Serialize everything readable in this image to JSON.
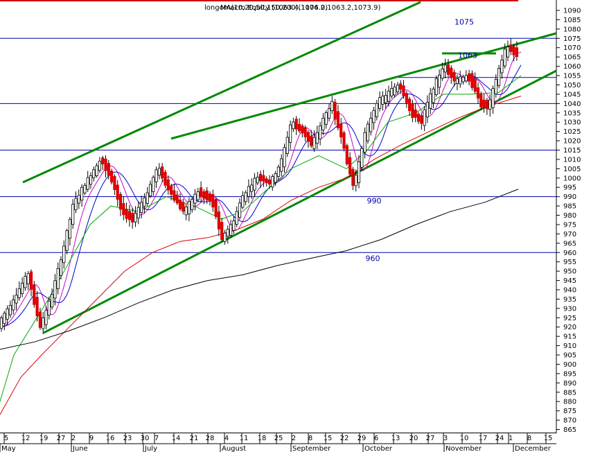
{
  "chart_data": {
    "type": "candlestick",
    "title": "longomacro  Equity (1063.4,1076.2,1063.2,1073.9)",
    "title_overlap": "MA(10,20,50,150,200)(1104.0)",
    "yaxis": {
      "min": 865,
      "max": 1090,
      "step": 5,
      "position": "right"
    },
    "x_ticks": [
      "5",
      "12",
      "19",
      "27",
      "2",
      "9",
      "16",
      "23",
      "30",
      "7",
      "14",
      "21",
      "28",
      "4",
      "11",
      "18",
      "25",
      "2",
      "8",
      "15",
      "22",
      "29",
      "6",
      "13",
      "20",
      "27",
      "3",
      "10",
      "17",
      "24",
      "1",
      "8",
      "15"
    ],
    "months": [
      "May",
      "June",
      "July",
      "August",
      "September",
      "October",
      "November",
      "December"
    ],
    "annotations": [
      {
        "text": "1075",
        "value": 1075
      },
      {
        "text": "1063",
        "value": 1063
      },
      {
        "text": "990",
        "value": 990
      },
      {
        "text": "960",
        "value": 960
      }
    ],
    "hlines": [
      {
        "value": 1075,
        "color": "#0000aa"
      },
      {
        "value": 1040,
        "color": "#0000aa"
      },
      {
        "value": 1015,
        "color": "#0000aa"
      },
      {
        "value": 990,
        "color": "#0000aa"
      },
      {
        "value": 960,
        "color": "#0000aa"
      }
    ],
    "colors": {
      "up": "#ffffff",
      "down": "#dd0000",
      "wick": "#000000",
      "ma_fast": "#cc00cc",
      "ma_mid": "#0000cc",
      "ma_50": "#00aa00",
      "ma_150": "#dd0000",
      "ma_200": "#000000",
      "trend": "#008800",
      "top_border": "#cc0000"
    }
  }
}
